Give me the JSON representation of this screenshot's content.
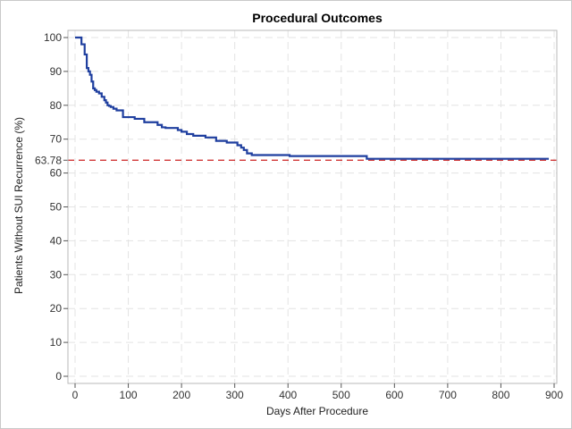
{
  "chart_data": {
    "type": "line",
    "title": "Procedural Outcomes",
    "xlabel": "Days After Procedure",
    "ylabel": "Patients Without SUI Recurrence (%)",
    "xlim": [
      0,
      900
    ],
    "ylim": [
      0,
      100
    ],
    "xticks": [
      0,
      100,
      200,
      300,
      400,
      500,
      600,
      700,
      800,
      900
    ],
    "yticks": [
      0,
      10,
      20,
      30,
      40,
      50,
      60,
      70,
      80,
      90,
      100
    ],
    "grid": true,
    "line_style": "step",
    "colors": {
      "series": "#1f3f9f",
      "reference": "#cc2222",
      "grid": "#e3e3e3"
    },
    "reference_line": {
      "y": 63.78,
      "label": "63.78",
      "style": "dashed"
    },
    "series": [
      {
        "x": [
          0,
          12,
          18,
          22,
          25,
          28,
          31,
          34,
          37,
          40,
          45,
          50,
          55,
          58,
          61,
          64,
          67,
          72,
          78,
          90,
          112,
          130,
          155,
          163,
          170,
          193,
          200,
          210,
          222,
          245,
          265,
          285,
          305,
          312,
          317,
          323,
          332,
          403,
          548,
          890
        ],
        "y": [
          100,
          98,
          95,
          91,
          90,
          89,
          87,
          85,
          84.5,
          84,
          83.5,
          82.5,
          81.5,
          80.8,
          80,
          79.8,
          79.5,
          79,
          78.5,
          76.5,
          76,
          75,
          74.2,
          73.5,
          73.3,
          72.7,
          72.2,
          71.5,
          71,
          70.5,
          69.5,
          69,
          68.2,
          67.5,
          66.8,
          65.8,
          65.3,
          65,
          64.2,
          64.2
        ]
      }
    ]
  }
}
